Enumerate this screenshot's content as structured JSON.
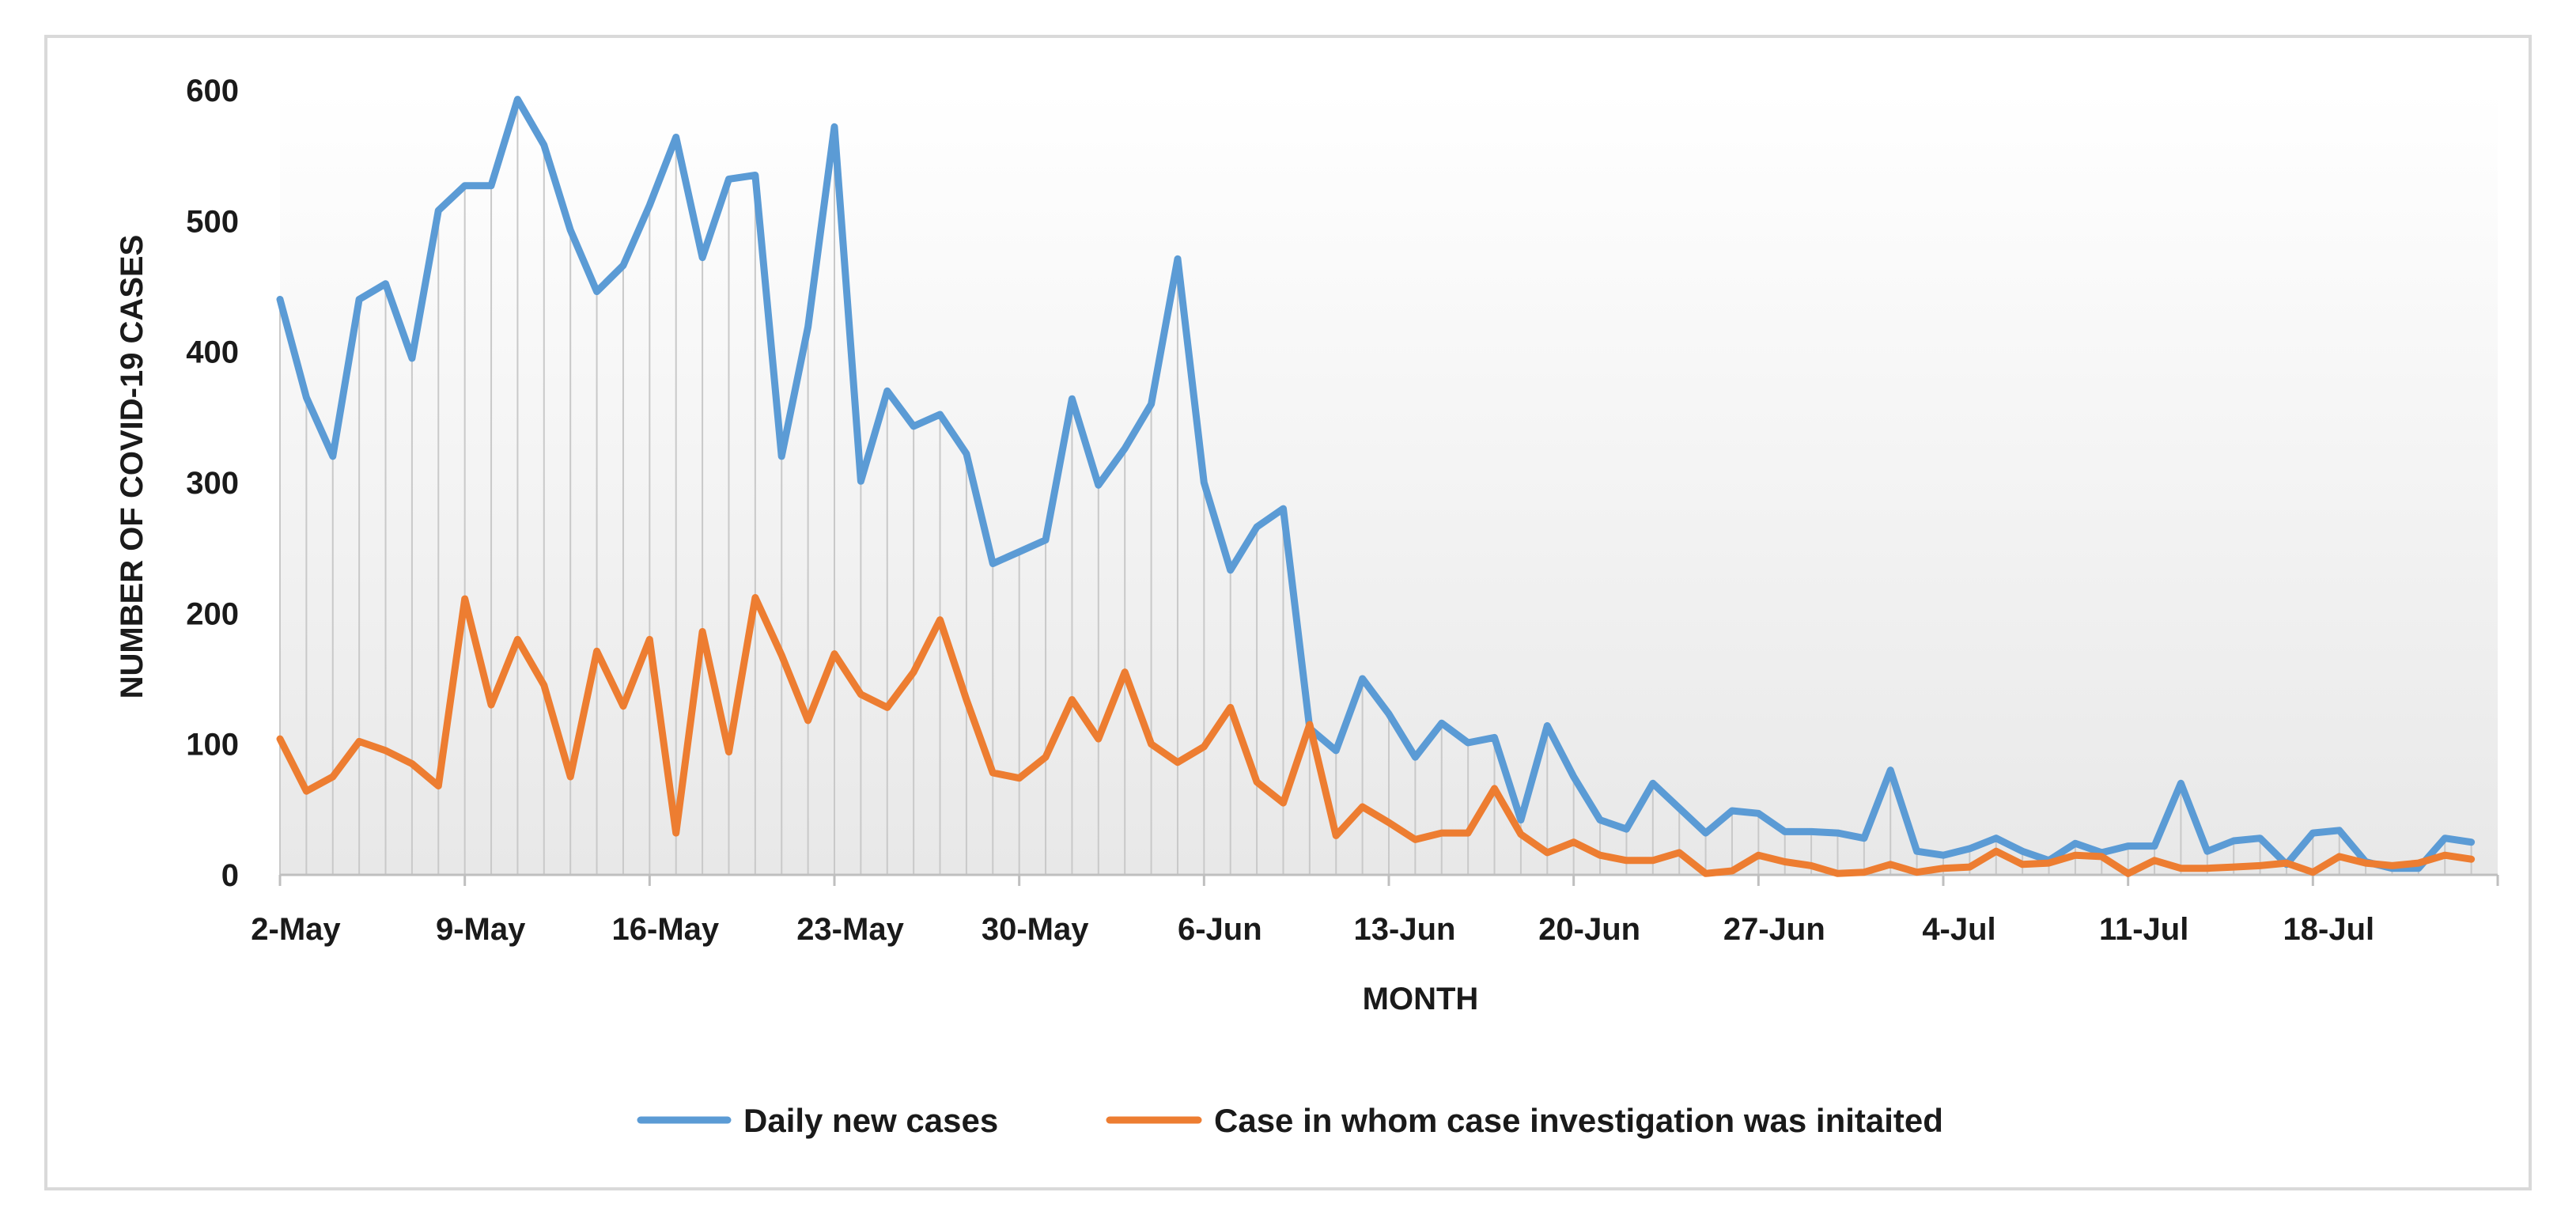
{
  "chart_data": {
    "type": "line",
    "title": "",
    "xlabel": "MONTH",
    "ylabel": "NUMBER OF COVID-19 CASES",
    "ylim": [
      0,
      600
    ],
    "yticks": [
      0,
      100,
      200,
      300,
      400,
      500,
      600
    ],
    "x_start_label": "2-May",
    "x_tick_labels": [
      "2-May",
      "9-May",
      "16-May",
      "23-May",
      "30-May",
      "6-Jun",
      "13-Jun",
      "20-Jun",
      "27-Jun",
      "4-Jul",
      "11-Jul",
      "18-Jul"
    ],
    "x_tick_day_index": [
      0,
      7,
      14,
      21,
      28,
      35,
      42,
      49,
      56,
      63,
      70,
      77
    ],
    "x_day_range": [
      0,
      84
    ],
    "drop_lines": true,
    "legend_position": "bottom",
    "series": [
      {
        "name": "Daily new cases",
        "color": "#5b9bd5",
        "values": [
          440,
          365,
          320,
          440,
          452,
          395,
          508,
          527,
          527,
          593,
          558,
          493,
          446,
          466,
          512,
          564,
          472,
          532,
          535,
          320,
          419,
          572,
          301,
          370,
          343,
          352,
          322,
          238,
          247,
          256,
          364,
          298,
          326,
          360,
          471,
          300,
          233,
          266,
          280,
          112,
          95,
          150,
          123,
          90,
          116,
          101,
          105,
          42,
          114,
          75,
          42,
          35,
          70,
          51,
          32,
          49,
          47,
          33,
          33,
          32,
          28,
          80,
          18,
          15,
          20,
          28,
          18,
          11,
          24,
          17,
          22,
          22,
          70,
          18,
          26,
          28,
          8,
          32,
          34,
          10,
          5,
          5,
          28,
          25
        ]
      },
      {
        "name": "Case in whom case investigation was initaited",
        "color": "#ed7d31",
        "values": [
          104,
          64,
          75,
          102,
          95,
          85,
          68,
          211,
          130,
          180,
          145,
          75,
          171,
          129,
          180,
          32,
          186,
          94,
          212,
          168,
          118,
          169,
          138,
          128,
          155,
          195,
          134,
          78,
          74,
          90,
          134,
          104,
          155,
          100,
          86,
          98,
          128,
          71,
          55,
          115,
          30,
          52,
          40,
          27,
          32,
          32,
          66,
          31,
          17,
          25,
          15,
          11,
          11,
          17,
          1,
          3,
          15,
          10,
          7,
          1,
          2,
          8,
          2,
          5,
          6,
          18,
          8,
          9,
          15,
          14,
          1,
          11,
          5,
          5,
          6,
          7,
          9,
          2,
          14,
          9,
          7,
          9,
          15,
          12
        ]
      }
    ]
  }
}
